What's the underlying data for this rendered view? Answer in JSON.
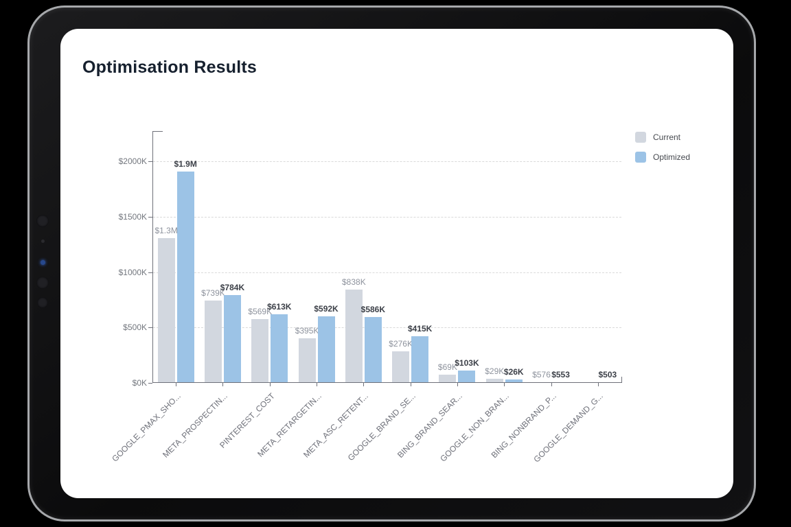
{
  "chart_data": {
    "type": "bar",
    "title": "Optimisation Results",
    "legend_position": "top-right",
    "grid": "dashed horizontal",
    "unit": "thousand USD",
    "ylim": [
      0,
      2270
    ],
    "y_axis": {
      "ticks": [
        {
          "label": "$0K",
          "value": 0
        },
        {
          "label": "$500K",
          "value": 500
        },
        {
          "label": "$1000K",
          "value": 1000
        },
        {
          "label": "$1500K",
          "value": 1500
        },
        {
          "label": "$2000K",
          "value": 2000
        }
      ]
    },
    "categories": [
      "GOOGLE_PMAX_SHO...",
      "META_PROSPECTIN...",
      "PINTEREST_COST",
      "META_RETARGETIN...",
      "META_ASC_RETENT...",
      "GOOGLE_BRAND_SE...",
      "BING_BRAND_SEAR...",
      "GOOGLE_NON_BRAN...",
      "BING_NONBRAND_P...",
      "GOOGLE_DEMAND_G..."
    ],
    "series": [
      {
        "name": "Current",
        "color": "#d2d7df",
        "values": [
          1300,
          739,
          569,
          395,
          838,
          276,
          69,
          29,
          0.576,
          null
        ],
        "labels": [
          "$1.3M",
          "$739K",
          "$569K",
          "$395K",
          "$838K",
          "$276K",
          "$69K",
          "$29K",
          "$576",
          ""
        ]
      },
      {
        "name": "Optimized",
        "color": "#9cc3e6",
        "values": [
          1900,
          784,
          613,
          592,
          586,
          415,
          103,
          26,
          0.553,
          0.503
        ],
        "labels": [
          "$1.9M",
          "$784K",
          "$613K",
          "$592K",
          "$586K",
          "$415K",
          "$103K",
          "$26K",
          "$553",
          "$503"
        ]
      }
    ]
  }
}
